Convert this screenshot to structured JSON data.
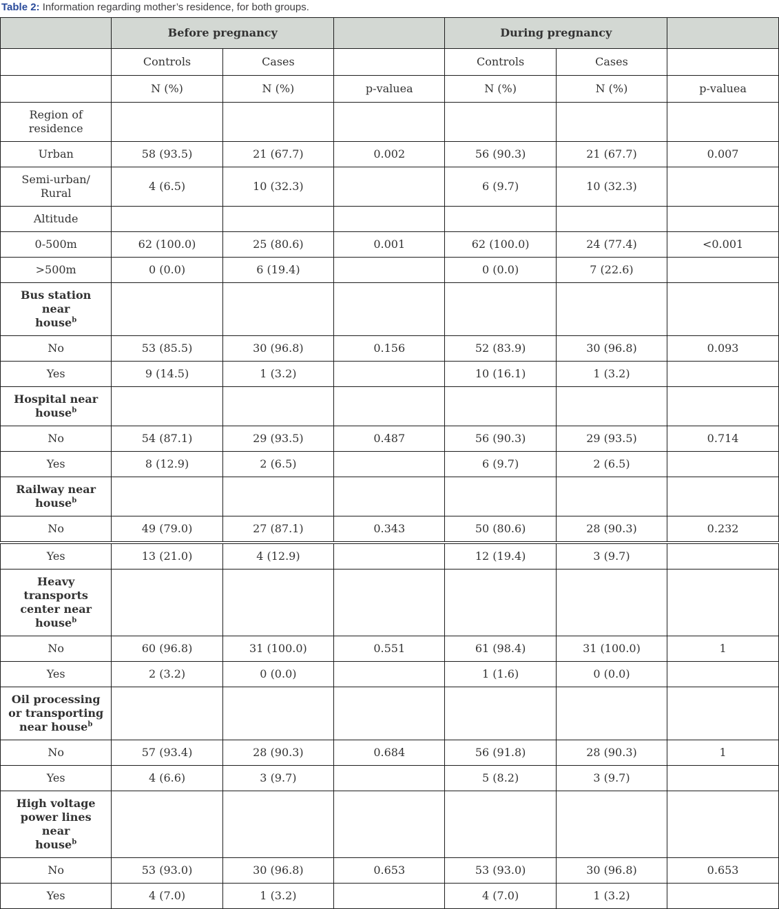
{
  "caption": {
    "prefix": "Table 2:",
    "text": " Information regarding mother’s residence, for both groups."
  },
  "colors": {
    "caption_prefix_blue": "#2a4b9b",
    "caption_text_gray": "#414042",
    "header_fill_gray": "#d3d8d3",
    "table_border": "#1c1c1c",
    "body_text": "#333333"
  },
  "table": {
    "group_header_row": [
      {
        "label": "",
        "span": 1
      },
      {
        "label": "Before pregnancy",
        "span": 2
      },
      {
        "label": "",
        "span": 1
      },
      {
        "label": "During pregnancy",
        "span": 2
      },
      {
        "label": "",
        "span": 1
      }
    ],
    "subheader_row": [
      "",
      "Controls",
      "Cases",
      "",
      "Controls",
      "Cases",
      ""
    ],
    "measure_row": [
      "",
      "N (%)",
      "N (%)",
      "p-valuea",
      "N (%)",
      "N (%)",
      "p-valuea"
    ],
    "part1_rows": [
      {
        "label": "Region of\nresidence",
        "bold": false,
        "sup": "",
        "cells": [
          "",
          "",
          "",
          "",
          "",
          ""
        ]
      },
      {
        "label": "Urban",
        "bold": false,
        "sup": "",
        "cells": [
          "58 (93.5)",
          "21 (67.7)",
          "0.002",
          "56 (90.3)",
          "21 (67.7)",
          "0.007"
        ]
      },
      {
        "label": "Semi-urban/\nRural",
        "bold": false,
        "sup": "",
        "cells": [
          "4 (6.5)",
          "10 (32.3)",
          "",
          "6 (9.7)",
          "10 (32.3)",
          ""
        ]
      },
      {
        "label": "Altitude",
        "bold": false,
        "sup": "",
        "cells": [
          "",
          "",
          "",
          "",
          "",
          ""
        ]
      },
      {
        "label": "0-500m",
        "bold": false,
        "sup": "",
        "cells": [
          "62 (100.0)",
          "25 (80.6)",
          "0.001",
          "62 (100.0)",
          "24 (77.4)",
          "<0.001"
        ]
      },
      {
        "label": ">500m",
        "bold": false,
        "sup": "",
        "cells": [
          "0 (0.0)",
          "6 (19.4)",
          "",
          "0 (0.0)",
          "7 (22.6)",
          ""
        ]
      },
      {
        "label": "Bus station near\nhouse",
        "bold": true,
        "sup": "b",
        "cells": [
          "",
          "",
          "",
          "",
          "",
          ""
        ]
      },
      {
        "label": "No",
        "bold": false,
        "sup": "",
        "cells": [
          "53 (85.5)",
          "30 (96.8)",
          "0.156",
          "52 (83.9)",
          "30 (96.8)",
          "0.093"
        ]
      },
      {
        "label": "Yes",
        "bold": false,
        "sup": "",
        "cells": [
          "9 (14.5)",
          "1 (3.2)",
          "",
          "10 (16.1)",
          "1 (3.2)",
          ""
        ]
      },
      {
        "label": "Hospital near\nhouse",
        "bold": true,
        "sup": "b",
        "cells": [
          "",
          "",
          "",
          "",
          "",
          ""
        ]
      },
      {
        "label": "No",
        "bold": false,
        "sup": "",
        "cells": [
          "54 (87.1)",
          "29 (93.5)",
          "0.487",
          "56 (90.3)",
          "29 (93.5)",
          "0.714"
        ]
      },
      {
        "label": "Yes",
        "bold": false,
        "sup": "",
        "cells": [
          "8 (12.9)",
          "2 (6.5)",
          "",
          "6 (9.7)",
          "2 (6.5)",
          ""
        ]
      },
      {
        "label": "Railway near\nhouse",
        "bold": true,
        "sup": "b",
        "cells": [
          "",
          "",
          "",
          "",
          "",
          ""
        ]
      },
      {
        "label": "No",
        "bold": false,
        "sup": "",
        "cells": [
          "49 (79.0)",
          "27 (87.1)",
          "0.343",
          "50 (80.6)",
          "28 (90.3)",
          "0.232"
        ]
      }
    ],
    "part2_rows": [
      {
        "label": "Yes",
        "bold": false,
        "sup": "",
        "cells": [
          "13 (21.0)",
          "4 (12.9)",
          "",
          "12 (19.4)",
          "3 (9.7)",
          ""
        ]
      },
      {
        "label": "Heavy transports\ncenter near\nhouse",
        "bold": true,
        "sup": "b",
        "cells": [
          "",
          "",
          "",
          "",
          "",
          ""
        ]
      },
      {
        "label": "No",
        "bold": false,
        "sup": "",
        "cells": [
          "60 (96.8)",
          "31 (100.0)",
          "0.551",
          "61 (98.4)",
          "31 (100.0)",
          "1"
        ]
      },
      {
        "label": "Yes",
        "bold": false,
        "sup": "",
        "cells": [
          "2 (3.2)",
          "0 (0.0)",
          "",
          "1 (1.6)",
          "0 (0.0)",
          ""
        ]
      },
      {
        "label": "Oil processing\nor transporting\nnear house",
        "bold": true,
        "sup": "b",
        "cells": [
          "",
          "",
          "",
          "",
          "",
          ""
        ]
      },
      {
        "label": "No",
        "bold": false,
        "sup": "",
        "cells": [
          "57 (93.4)",
          "28 (90.3)",
          "0.684",
          "56 (91.8)",
          "28 (90.3)",
          "1"
        ]
      },
      {
        "label": "Yes",
        "bold": false,
        "sup": "",
        "cells": [
          "4 (6.6)",
          "3 (9.7)",
          "",
          "5 (8.2)",
          "3 (9.7)",
          ""
        ]
      },
      {
        "label": "High voltage\npower lines near\nhouse",
        "bold": true,
        "sup": "b",
        "cells": [
          "",
          "",
          "",
          "",
          "",
          ""
        ]
      },
      {
        "label": "No",
        "bold": false,
        "sup": "",
        "cells": [
          "53 (93.0)",
          "30 (96.8)",
          "0.653",
          "53 (93.0)",
          "30 (96.8)",
          "0.653"
        ]
      },
      {
        "label": "Yes",
        "bold": false,
        "sup": "",
        "cells": [
          "4 (7.0)",
          "1 (3.2)",
          "",
          "4 (7.0)",
          "1 (3.2)",
          ""
        ]
      }
    ]
  }
}
